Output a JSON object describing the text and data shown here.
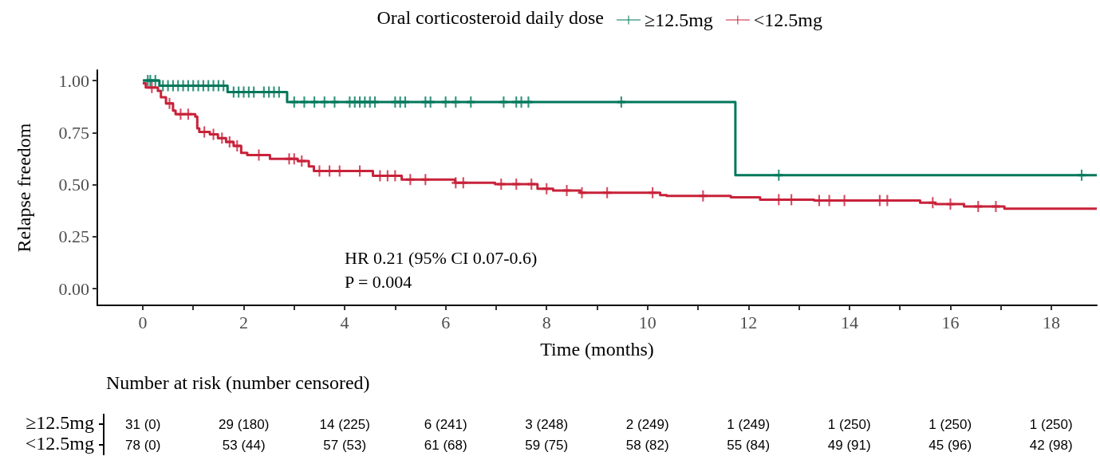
{
  "chart_data": [
    {
      "type": "step",
      "xlabel": "Time (months)",
      "ylabel": "Relapse freedom",
      "legend_title": "Oral corticosteroid daily dose",
      "legend": "top",
      "grid": false,
      "xlim": [
        -0.9,
        18.9
      ],
      "ylim": [
        -0.08,
        1.05
      ],
      "xticks": [
        0,
        {
          "value": 1,
          "label": null
        },
        2,
        {
          "value": 3,
          "label": null
        },
        4,
        {
          "value": 5,
          "label": null
        },
        6,
        {
          "value": 7,
          "label": null
        },
        8,
        {
          "value": 9,
          "label": null
        },
        10,
        {
          "value": 11,
          "label": null
        },
        12,
        {
          "value": 13,
          "label": null
        },
        14,
        {
          "value": 15,
          "label": null
        },
        16,
        {
          "value": 17,
          "label": null
        },
        18
      ],
      "yticks": [
        {
          "value": 0,
          "label": "0.00"
        },
        {
          "value": 0.25,
          "label": "0.25"
        },
        {
          "value": 0.5,
          "label": "0.50"
        },
        {
          "value": 0.75,
          "label": "0.75"
        },
        {
          "value": 1,
          "label": "1.00"
        }
      ],
      "annotations": [
        "HR 0.21 (95% CI 0.07-0.6)",
        "P = 0.004"
      ],
      "series": [
        {
          "name": "≥12.5mg",
          "type": "step",
          "color": "#00775b",
          "marker": "none",
          "x": [
            0,
            0.33,
            1.68,
            2.86,
            11.74,
            18.9
          ],
          "values": [
            1.0,
            0.975,
            0.945,
            0.897,
            0.545,
            0.545
          ]
        },
        {
          "name": "<12.5mg",
          "type": "step",
          "color": "#c8223a",
          "marker": "none",
          "x": [
            0,
            0.06,
            0.3,
            0.36,
            0.46,
            0.6,
            0.65,
            1.04,
            1.08,
            1.12,
            1.33,
            1.49,
            1.65,
            1.8,
            1.95,
            2.07,
            2.52,
            3.07,
            3.29,
            3.39,
            4.56,
            5.13,
            6.19,
            6.98,
            7.82,
            8.13,
            8.67,
            10.25,
            10.38,
            11.65,
            12.23,
            13.3,
            15.4,
            15.7,
            16.27,
            17.07,
            18.9
          ],
          "values": [
            0.987,
            0.967,
            0.95,
            0.92,
            0.89,
            0.856,
            0.838,
            0.827,
            0.77,
            0.753,
            0.742,
            0.723,
            0.705,
            0.686,
            0.653,
            0.642,
            0.624,
            0.613,
            0.587,
            0.565,
            0.542,
            0.524,
            0.509,
            0.502,
            0.48,
            0.472,
            0.461,
            0.45,
            0.446,
            0.439,
            0.428,
            0.424,
            0.413,
            0.406,
            0.395,
            0.384,
            0.384
          ]
        },
        {
          "type": "scatter",
          "color": "#00775b",
          "marker": "cross",
          "x": [
            0.1,
            0.15,
            0.25,
            0.4,
            0.5,
            0.6,
            0.7,
            0.8,
            0.9,
            1.0,
            1.1,
            1.2,
            1.3,
            1.4,
            1.5,
            1.6,
            1.8,
            1.9,
            2.0,
            2.1,
            2.2,
            2.4,
            2.5,
            2.6,
            2.7,
            3.0,
            3.2,
            3.4,
            3.6,
            3.8,
            4.1,
            4.2,
            4.3,
            4.4,
            4.5,
            4.6,
            5.0,
            5.1,
            5.2,
            5.6,
            5.7,
            6.0,
            6.2,
            6.5,
            7.15,
            7.4,
            7.5,
            7.64,
            9.48,
            12.6,
            18.6
          ],
          "values": [
            1.0,
            1.0,
            1.0,
            0.975,
            0.975,
            0.975,
            0.975,
            0.975,
            0.975,
            0.975,
            0.975,
            0.975,
            0.975,
            0.975,
            0.975,
            0.975,
            0.945,
            0.945,
            0.945,
            0.945,
            0.945,
            0.945,
            0.945,
            0.945,
            0.945,
            0.897,
            0.897,
            0.897,
            0.897,
            0.897,
            0.897,
            0.897,
            0.897,
            0.897,
            0.897,
            0.897,
            0.897,
            0.897,
            0.897,
            0.897,
            0.897,
            0.897,
            0.897,
            0.897,
            0.897,
            0.897,
            0.897,
            0.897,
            0.897,
            0.545,
            0.545
          ]
        },
        {
          "type": "scatter",
          "color": "#c8223a",
          "marker": "cross",
          "x": [
            0.18,
            0.53,
            0.75,
            0.9,
            1.22,
            1.4,
            1.57,
            1.72,
            1.87,
            2.3,
            2.9,
            3.0,
            3.15,
            3.5,
            3.7,
            3.9,
            4.3,
            4.7,
            4.85,
            5.0,
            5.3,
            5.6,
            6.2,
            6.35,
            7.1,
            7.4,
            7.7,
            8.0,
            8.4,
            8.7,
            9.2,
            10.1,
            11.1,
            12.6,
            12.85,
            13.4,
            13.6,
            13.9,
            14.6,
            14.75,
            15.65,
            16.0,
            16.55,
            16.9
          ],
          "values": [
            0.967,
            0.89,
            0.838,
            0.838,
            0.753,
            0.742,
            0.723,
            0.705,
            0.686,
            0.642,
            0.624,
            0.624,
            0.613,
            0.565,
            0.565,
            0.565,
            0.565,
            0.542,
            0.542,
            0.542,
            0.524,
            0.524,
            0.509,
            0.509,
            0.502,
            0.502,
            0.502,
            0.48,
            0.472,
            0.461,
            0.461,
            0.461,
            0.446,
            0.428,
            0.428,
            0.424,
            0.424,
            0.424,
            0.424,
            0.424,
            0.413,
            0.406,
            0.395,
            0.395
          ]
        }
      ]
    },
    {
      "type": "other",
      "title": "Number at risk (number censored)",
      "y_categories": [
        "≥12.5mg",
        "<12.5mg"
      ],
      "cell_labels": [
        [
          "31 (0)",
          "29 (180)",
          "14 (225)",
          "6 (241)",
          "3 (248)",
          "2 (249)",
          "1 (249)",
          "1 (250)",
          "1 (250)",
          "1 (250)"
        ],
        [
          "78 (0)",
          "53 (44)",
          "57 (53)",
          "61 (68)",
          "59 (75)",
          "58 (82)",
          "55 (84)",
          "49 (91)",
          "45 (96)",
          "42 (98)"
        ]
      ]
    }
  ]
}
